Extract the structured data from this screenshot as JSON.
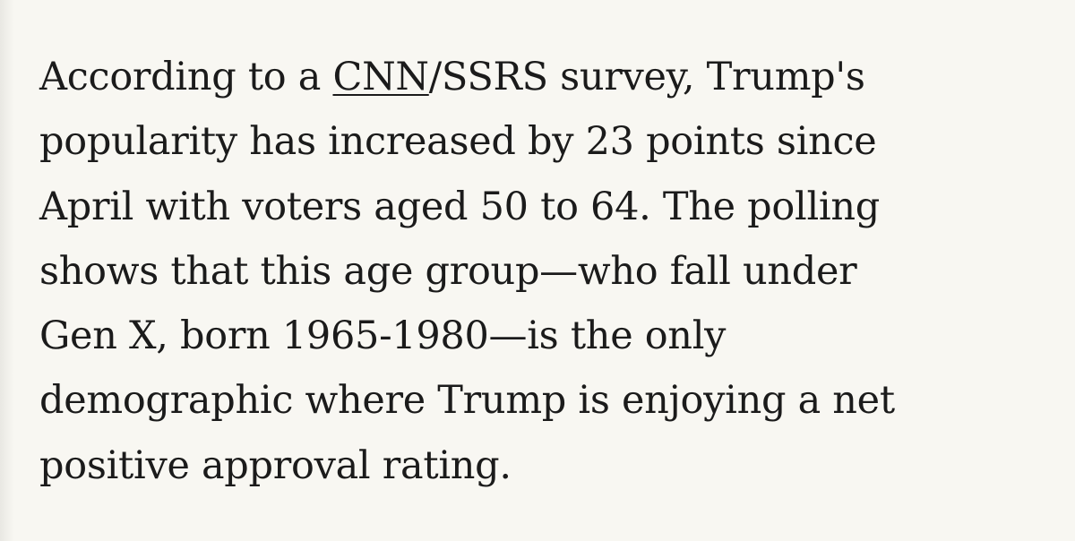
{
  "article": {
    "line1": {
      "before_link": "According to a ",
      "link_text": "CNN",
      "after_link": "/SSRS survey, Trump's"
    },
    "line2": "popularity has increased by 23 points since",
    "line3": "April with voters aged 50 to 64. The polling",
    "line4": "shows that this age group—who fall under",
    "line5": "Gen X, born 1965-1980—is the only",
    "line6": "demographic where Trump is enjoying a net",
    "line7": "positive approval rating."
  },
  "colors": {
    "background": "#f8f7f2",
    "text": "#1b1b1b"
  }
}
